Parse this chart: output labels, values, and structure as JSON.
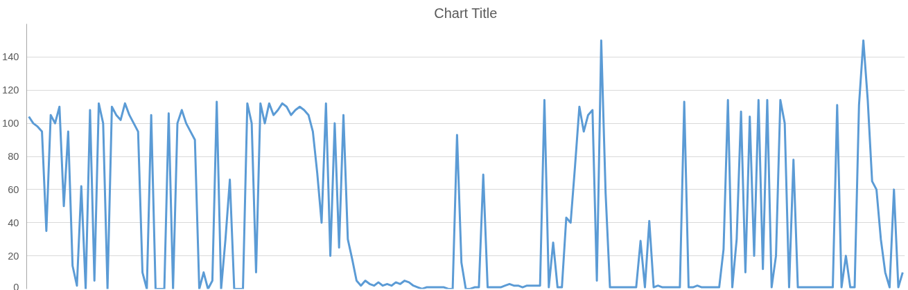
{
  "chart_data": {
    "type": "line",
    "title": "Chart Title",
    "categories": [
      null,
      null,
      null,
      null,
      null,
      null,
      null,
      null,
      null,
      null,
      null,
      null,
      null,
      null,
      null,
      null,
      null,
      null,
      null,
      null,
      null,
      null,
      null,
      null,
      null,
      null,
      null,
      null,
      null,
      null,
      null,
      null,
      null,
      null,
      null,
      null,
      null,
      null,
      null,
      null,
      null,
      null,
      null,
      null,
      null,
      null,
      null,
      null,
      null,
      null,
      null,
      null,
      null,
      null,
      null,
      null,
      null,
      null,
      null,
      null,
      null,
      null,
      null,
      null,
      null,
      null,
      null,
      null,
      null,
      null,
      null,
      null,
      null,
      null,
      null,
      null,
      null,
      null,
      null,
      null,
      null,
      null,
      null,
      null,
      null,
      null,
      null,
      null,
      null,
      null,
      null,
      null,
      null,
      null,
      null,
      null,
      null,
      null,
      null,
      null,
      null,
      null,
      null,
      null,
      null,
      null,
      null,
      null,
      null,
      null,
      null,
      null,
      null,
      null,
      null,
      null,
      null,
      null,
      null,
      null,
      null,
      null,
      null,
      null,
      null,
      null,
      null,
      null,
      null,
      null,
      null,
      null,
      null,
      null,
      null,
      null,
      null,
      null,
      null,
      null,
      null,
      null,
      null,
      null,
      null,
      null,
      null,
      null,
      null,
      null,
      null,
      null,
      null,
      null,
      null,
      null,
      null,
      null,
      null,
      null,
      null,
      null,
      null,
      null,
      null,
      null,
      null,
      null,
      null,
      null,
      null,
      null,
      null,
      null,
      null,
      null,
      null,
      null,
      null,
      null,
      null,
      null,
      null,
      null,
      null,
      null,
      null,
      null,
      null,
      null,
      null,
      null,
      null,
      null,
      null,
      null,
      null,
      null,
      null,
      null,
      null
    ],
    "series": [
      {
        "color": "#5b9bd5",
        "values": [
          104,
          100,
          98,
          95,
          35,
          105,
          100,
          110,
          50,
          95,
          14,
          2,
          62,
          0,
          108,
          5,
          112,
          100,
          0,
          110,
          105,
          102,
          112,
          105,
          100,
          95,
          10,
          0,
          105,
          0,
          0,
          0,
          106,
          0,
          100,
          108,
          100,
          95,
          90,
          0,
          10,
          0,
          5,
          113,
          0,
          30,
          66,
          0,
          0,
          0,
          112,
          100,
          10,
          112,
          100,
          112,
          105,
          108,
          112,
          110,
          105,
          108,
          110,
          108,
          105,
          95,
          70,
          40,
          112,
          20,
          100,
          25,
          105,
          30,
          18,
          5,
          2,
          5,
          3,
          2,
          4,
          2,
          3,
          2,
          4,
          3,
          5,
          4,
          2,
          1,
          0,
          1,
          1,
          1,
          1,
          1,
          0,
          0,
          93,
          16,
          0,
          0,
          1,
          1,
          69,
          1,
          1,
          1,
          1,
          2,
          3,
          2,
          2,
          1,
          2,
          2,
          2,
          2,
          114,
          1,
          28,
          1,
          1,
          43,
          40,
          74,
          110,
          95,
          105,
          108,
          5,
          150,
          58,
          1,
          1,
          1,
          1,
          1,
          1,
          1,
          29,
          1,
          41,
          1,
          2,
          1,
          1,
          1,
          1,
          1,
          113,
          1,
          1,
          2,
          1,
          1,
          1,
          1,
          1,
          24,
          114,
          1,
          30,
          107,
          10,
          104,
          20,
          114,
          12,
          114,
          1,
          20,
          114,
          100,
          1,
          78,
          1,
          1,
          1,
          1,
          1,
          1,
          1,
          1,
          1,
          111,
          1,
          20,
          1,
          1,
          111,
          150,
          114,
          65,
          60,
          30,
          10,
          1,
          60,
          1,
          10
        ]
      }
    ],
    "ylim": [
      0,
      160
    ],
    "yticks": [
      0,
      20,
      40,
      60,
      80,
      100,
      120,
      140
    ],
    "grid": "y",
    "tick_labels": "y"
  }
}
